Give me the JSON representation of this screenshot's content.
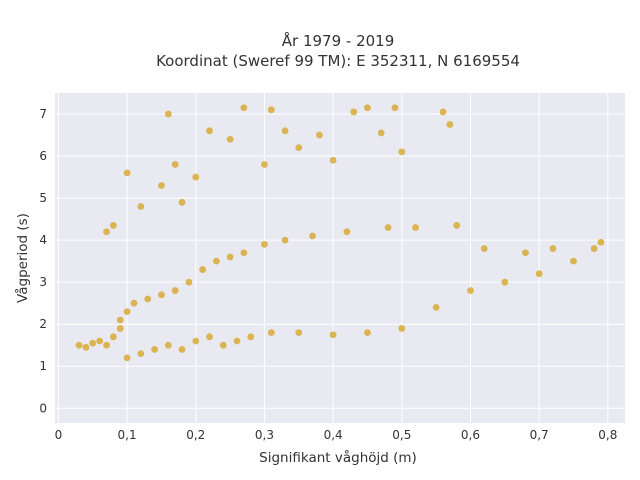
{
  "chart_data": {
    "type": "scatter",
    "title_lines": [
      "År 1979 - 2019",
      "Koordinat (Sweref 99 TM): E 352311, N 6169554"
    ],
    "xlabel": "Signifikant våghöjd (m)",
    "ylabel": "Vågperiod (s)",
    "xlim": [
      -0.005,
      0.825
    ],
    "ylim": [
      -0.35,
      7.5
    ],
    "x_ticks": [
      0,
      0.1,
      0.2,
      0.3,
      0.4,
      0.5,
      0.6,
      0.7,
      0.8
    ],
    "x_tick_labels": [
      "0",
      "0,1",
      "0,2",
      "0,3",
      "0,4",
      "0,5",
      "0,6",
      "0,7",
      "0,8"
    ],
    "y_ticks": [
      0,
      1,
      2,
      3,
      4,
      5,
      6,
      7
    ],
    "y_tick_labels": [
      "0",
      "1",
      "2",
      "3",
      "4",
      "5",
      "6",
      "7"
    ],
    "grid": true,
    "legend": "none",
    "colors": {
      "point": "#d4a21c",
      "plot_bg": "#e9e9f1",
      "grid": "#ffffff"
    },
    "series": [
      {
        "points": [
          [
            0.03,
            1.5
          ],
          [
            0.04,
            1.45
          ],
          [
            0.05,
            1.55
          ],
          [
            0.06,
            1.6
          ],
          [
            0.07,
            1.5
          ],
          [
            0.08,
            1.7
          ],
          [
            0.09,
            1.9
          ],
          [
            0.09,
            2.1
          ],
          [
            0.1,
            2.3
          ],
          [
            0.1,
            1.2
          ],
          [
            0.11,
            2.5
          ],
          [
            0.12,
            1.3
          ],
          [
            0.13,
            2.6
          ],
          [
            0.14,
            1.4
          ],
          [
            0.15,
            2.7
          ],
          [
            0.16,
            1.5
          ],
          [
            0.17,
            2.8
          ],
          [
            0.18,
            1.4
          ],
          [
            0.19,
            3.0
          ],
          [
            0.2,
            1.6
          ],
          [
            0.21,
            3.3
          ],
          [
            0.22,
            1.7
          ],
          [
            0.23,
            3.5
          ],
          [
            0.24,
            1.5
          ],
          [
            0.25,
            3.6
          ],
          [
            0.26,
            1.6
          ],
          [
            0.27,
            3.7
          ],
          [
            0.28,
            1.7
          ],
          [
            0.3,
            3.9
          ],
          [
            0.31,
            1.8
          ],
          [
            0.33,
            4.0
          ],
          [
            0.35,
            1.8
          ],
          [
            0.37,
            4.1
          ],
          [
            0.4,
            1.75
          ],
          [
            0.42,
            4.2
          ],
          [
            0.45,
            1.8
          ],
          [
            0.48,
            4.3
          ],
          [
            0.5,
            1.9
          ],
          [
            0.52,
            4.3
          ],
          [
            0.55,
            2.4
          ],
          [
            0.58,
            4.35
          ],
          [
            0.6,
            2.8
          ],
          [
            0.62,
            3.8
          ],
          [
            0.65,
            3.0
          ],
          [
            0.68,
            3.7
          ],
          [
            0.7,
            3.2
          ],
          [
            0.72,
            3.8
          ],
          [
            0.75,
            3.5
          ],
          [
            0.78,
            3.8
          ],
          [
            0.79,
            3.95
          ],
          [
            0.12,
            4.8
          ],
          [
            0.15,
            5.3
          ],
          [
            0.16,
            7.0
          ],
          [
            0.17,
            5.8
          ],
          [
            0.18,
            4.9
          ],
          [
            0.2,
            5.5
          ],
          [
            0.22,
            6.6
          ],
          [
            0.25,
            6.4
          ],
          [
            0.27,
            7.15
          ],
          [
            0.3,
            5.8
          ],
          [
            0.31,
            7.1
          ],
          [
            0.33,
            6.6
          ],
          [
            0.35,
            6.2
          ],
          [
            0.38,
            6.5
          ],
          [
            0.4,
            5.9
          ],
          [
            0.43,
            7.05
          ],
          [
            0.45,
            7.15
          ],
          [
            0.47,
            6.55
          ],
          [
            0.49,
            7.15
          ],
          [
            0.5,
            6.1
          ],
          [
            0.56,
            7.05
          ],
          [
            0.57,
            6.75
          ],
          [
            0.1,
            5.6
          ],
          [
            0.07,
            4.2
          ],
          [
            0.08,
            4.35
          ]
        ]
      }
    ]
  }
}
